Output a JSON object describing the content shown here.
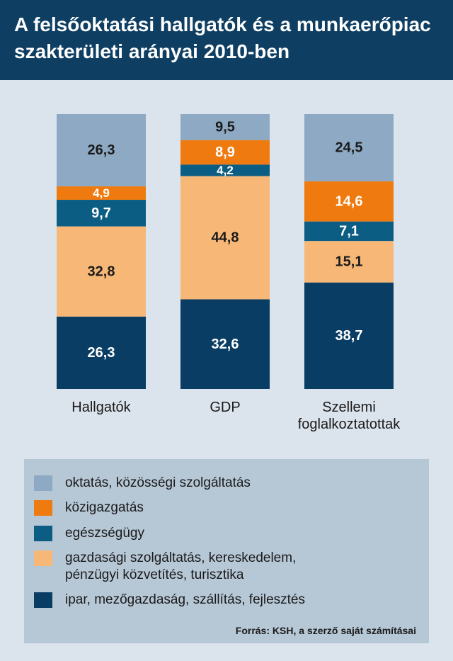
{
  "title": {
    "line1": "A felsőoktatási hallgatók és a munkaerőpiac",
    "line2": "szakterületi arányai 2010-ben"
  },
  "colors": {
    "header_bg": "#0e3e62",
    "page_bg": "#dbe3ec",
    "legend_bg": "#b6c7d6",
    "segment_colors": [
      "#8ea9c3",
      "#ef7b10",
      "#0b5d83",
      "#f7b877",
      "#0a3d63"
    ]
  },
  "chart_data": {
    "type": "bar",
    "stacked": true,
    "categories": [
      "Hallgatók",
      "GDP",
      "Szellemi foglalkoztatottak"
    ],
    "category_labels": [
      [
        "Hallgatók"
      ],
      [
        "GDP"
      ],
      [
        "Szellemi",
        "foglalkoztatottak"
      ]
    ],
    "series": [
      {
        "name": "oktatás, közösségi szolgáltatás",
        "color": "#8ea9c3",
        "values": [
          26.3,
          9.5,
          24.5
        ],
        "labels": [
          "26,3",
          "9,5",
          "24,5"
        ]
      },
      {
        "name": "közigazgatás",
        "color": "#ef7b10",
        "values": [
          4.9,
          8.9,
          14.6
        ],
        "labels": [
          "4,9",
          "8,9",
          "14,6"
        ]
      },
      {
        "name": "egészségügy",
        "color": "#0b5d83",
        "values": [
          9.7,
          4.2,
          7.1
        ],
        "labels": [
          "9,7",
          "4,2",
          "7,1"
        ]
      },
      {
        "name": "gazdasági szolgáltatás, kereskedelem, pénzügyi közvetítés, turisztika",
        "color": "#f7b877",
        "values": [
          32.8,
          44.8,
          15.1
        ],
        "labels": [
          "32,8",
          "44,8",
          "15,1"
        ]
      },
      {
        "name": "ipar, mezőgazdaság, szállítás, fejlesztés",
        "color": "#0a3d63",
        "values": [
          26.3,
          32.6,
          38.7
        ],
        "labels": [
          "26,3",
          "32,6",
          "38,7"
        ]
      }
    ],
    "ylim": [
      0,
      100
    ]
  },
  "legend": {
    "items": [
      {
        "lines": [
          "oktatás, közösségi szolgáltatás"
        ],
        "color": "#8ea9c3"
      },
      {
        "lines": [
          "közigazgatás"
        ],
        "color": "#ef7b10"
      },
      {
        "lines": [
          "egészségügy"
        ],
        "color": "#0b5d83"
      },
      {
        "lines": [
          "gazdasági szolgáltatás, kereskedelem,",
          "pénzügyi közvetítés, turisztika"
        ],
        "color": "#f7b877"
      },
      {
        "lines": [
          "ipar, mezőgazdaság, szállítás, fejlesztés"
        ],
        "color": "#0a3d63"
      }
    ]
  },
  "source": "Forrás: KSH, a szerző saját számításai"
}
